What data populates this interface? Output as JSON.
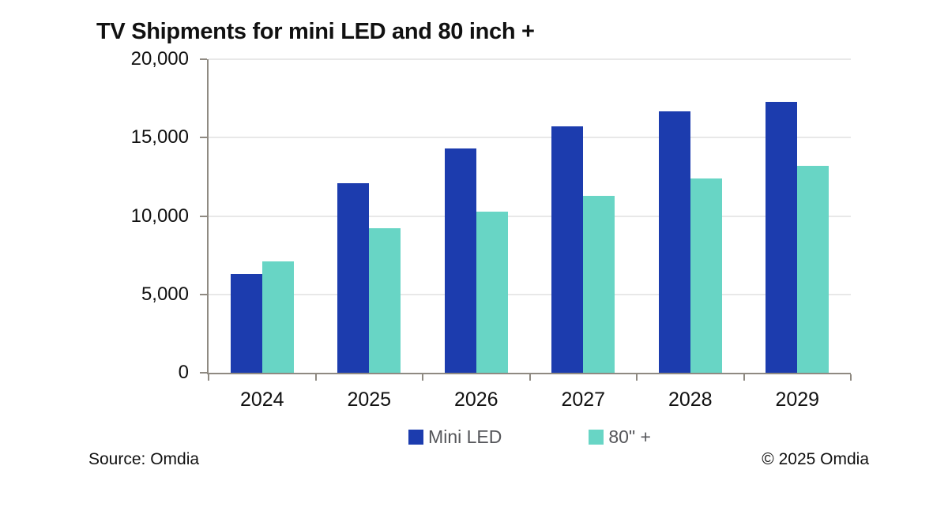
{
  "title": "TV Shipments for mini LED and 80 inch +",
  "footer": {
    "source": "Source: Omdia",
    "copyright": "© 2025 Omdia"
  },
  "colors": {
    "mini_led_bar": "#1c3cae",
    "eighty_inch_bar": "#68d5c5",
    "gridline": "#e8e8e8",
    "axis": "#8f8a82",
    "legend_text": "#55565a",
    "text": "#111111"
  },
  "chart_data": {
    "type": "bar",
    "title": "TV Shipments for mini LED and 80 inch +",
    "categories": [
      "2024",
      "2025",
      "2026",
      "2027",
      "2028",
      "2029"
    ],
    "series": [
      {
        "name": "Mini LED",
        "color": "#1c3cae",
        "values": [
          6300,
          12100,
          14300,
          15700,
          16700,
          17300
        ]
      },
      {
        "name": "80\" +",
        "color": "#68d5c5",
        "values": [
          7100,
          9200,
          10300,
          11300,
          12400,
          13200
        ]
      }
    ],
    "xlabel": "",
    "ylabel": "",
    "ylim": [
      0,
      20000
    ],
    "yticks": [
      0,
      5000,
      10000,
      15000,
      20000
    ],
    "ytick_labels": [
      "0",
      "5,000",
      "10,000",
      "15,000",
      "20,000"
    ],
    "grid": "horizontal",
    "legend_position": "bottom",
    "source": "Omdia"
  }
}
